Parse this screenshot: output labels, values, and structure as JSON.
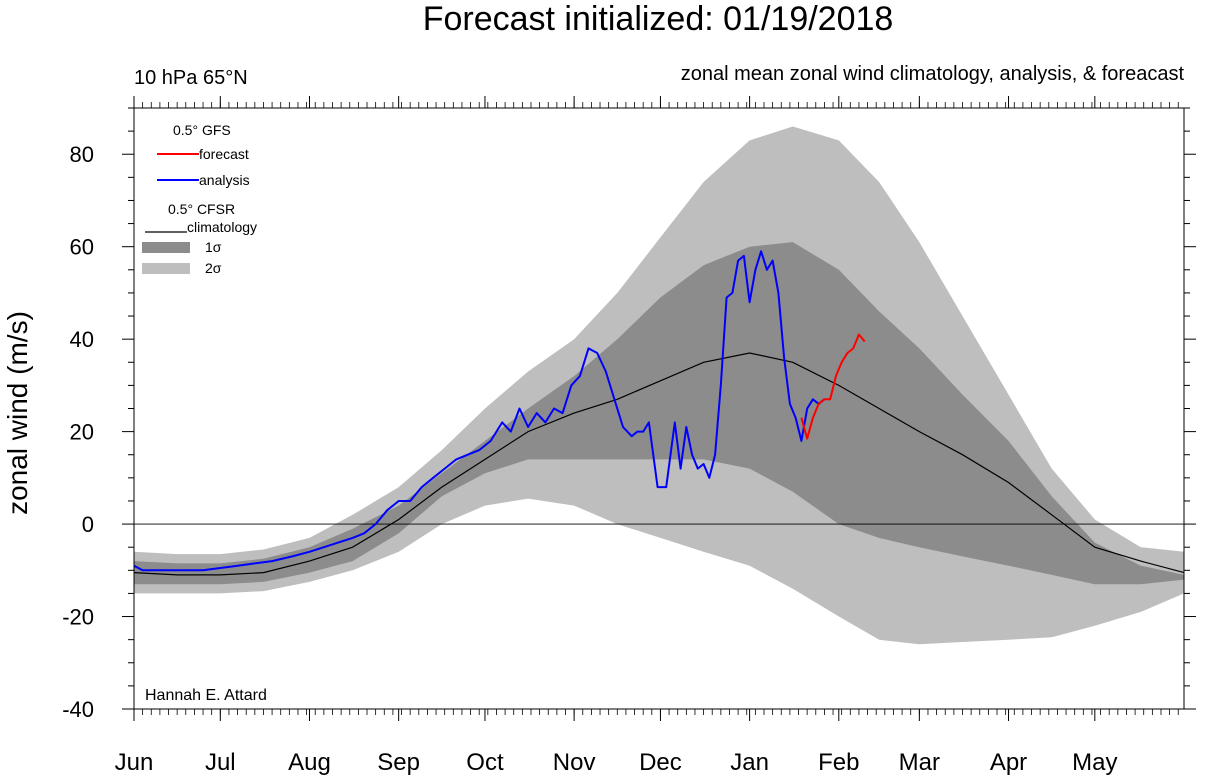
{
  "chart_data": {
    "type": "line",
    "title": "Forecast initialized: 01/19/2018",
    "subtitle_left": "10 hPa 65°N",
    "subtitle_right": "zonal mean zonal wind climatology, analysis, & foreacast",
    "ylabel": "zonal wind (m/s)",
    "xlabel": "",
    "ylim": [
      -40,
      90
    ],
    "yticks": [
      80,
      60,
      40,
      20,
      0,
      -20,
      -40
    ],
    "ytick_labels": [
      "80",
      "60",
      "40",
      "20",
      "0",
      "-20",
      "-40"
    ],
    "month_labels": [
      "Jun",
      "Jul",
      "Aug",
      "Sep",
      "Oct",
      "Nov",
      "Dec",
      "Jan",
      "Feb",
      "Mar",
      "Apr",
      "May"
    ],
    "month_positions_day": [
      0,
      30,
      61,
      92,
      122,
      153,
      183,
      214,
      245,
      273,
      304,
      334
    ],
    "xlim_day": [
      0,
      365
    ],
    "zero_line": true,
    "grid": false,
    "legend_placement": "top-left",
    "credit": "Hannah E. Attard",
    "legend": {
      "gfs_header": "0.5° GFS",
      "forecast_label": "forecast",
      "analysis_label": "analysis",
      "cfsr_header": "0.5° CFSR",
      "climatology_label": "climatology",
      "sigma1_label": "1σ",
      "sigma2_label": "2σ"
    },
    "colors": {
      "forecast": "#ff0000",
      "analysis": "#0000ff",
      "climatology": "#000000",
      "sigma1_band": "#8c8c8c",
      "sigma2_band": "#bebebe"
    },
    "climatology": {
      "x": [
        0,
        15,
        30,
        45,
        61,
        76,
        92,
        107,
        122,
        137,
        153,
        168,
        183,
        198,
        214,
        229,
        245,
        259,
        273,
        288,
        304,
        319,
        334,
        350,
        365
      ],
      "y": [
        -10.5,
        -11,
        -11,
        -10.5,
        -8,
        -5,
        1,
        8,
        14,
        20,
        24,
        27,
        31,
        35,
        37,
        35,
        30,
        25,
        20,
        15,
        9,
        2,
        -5,
        -8,
        -10.5
      ]
    },
    "sigma1_upper": {
      "x": [
        0,
        15,
        30,
        45,
        61,
        76,
        92,
        107,
        122,
        137,
        153,
        168,
        183,
        198,
        214,
        229,
        245,
        259,
        273,
        288,
        304,
        319,
        334,
        350,
        365
      ],
      "y": [
        -8,
        -8.5,
        -8.5,
        -7.5,
        -5,
        -1,
        4,
        11,
        18,
        25,
        32,
        40,
        49,
        56,
        60,
        61,
        55,
        46,
        38,
        28,
        18,
        6,
        -4,
        -9,
        -11
      ]
    },
    "sigma1_lower": {
      "x": [
        0,
        15,
        30,
        45,
        61,
        76,
        92,
        107,
        122,
        137,
        153,
        168,
        183,
        198,
        214,
        229,
        245,
        259,
        273,
        288,
        304,
        319,
        334,
        350,
        365
      ],
      "y": [
        -13,
        -13,
        -13,
        -12.5,
        -10.5,
        -8,
        -2,
        6,
        11,
        14,
        14,
        14,
        14,
        14,
        12,
        7,
        0,
        -3,
        -5,
        -7,
        -9,
        -11,
        -13,
        -13,
        -12
      ]
    },
    "sigma2_upper": {
      "x": [
        0,
        15,
        30,
        45,
        61,
        76,
        92,
        107,
        122,
        137,
        153,
        168,
        183,
        198,
        214,
        229,
        245,
        259,
        273,
        288,
        304,
        319,
        334,
        350,
        365
      ],
      "y": [
        -6,
        -6.5,
        -6.5,
        -5.5,
        -3,
        2,
        8,
        16,
        25,
        33,
        40,
        50,
        62,
        74,
        83,
        86,
        83,
        74,
        61,
        45,
        28,
        12,
        1,
        -5,
        -6
      ]
    },
    "sigma2_lower": {
      "x": [
        0,
        15,
        30,
        45,
        61,
        76,
        92,
        107,
        122,
        137,
        153,
        168,
        183,
        198,
        214,
        229,
        245,
        259,
        273,
        288,
        304,
        319,
        334,
        350,
        365
      ],
      "y": [
        -15,
        -15,
        -15,
        -14.5,
        -12.5,
        -10,
        -6,
        0,
        4,
        5.5,
        4,
        0,
        -3,
        -6,
        -9,
        -14,
        -20,
        -25,
        -26,
        -25.5,
        -25,
        -24.5,
        -22,
        -19,
        -15
      ]
    },
    "analysis": {
      "x": [
        0,
        3,
        7,
        12,
        18,
        24,
        30,
        36,
        42,
        48,
        55,
        61,
        66,
        71,
        76,
        80,
        84,
        88,
        92,
        96,
        100,
        104,
        108,
        112,
        116,
        120,
        124,
        128,
        131,
        134,
        137,
        140,
        143,
        146,
        149,
        152,
        155,
        158,
        161,
        164,
        167,
        170,
        173,
        175,
        177,
        179,
        182,
        185,
        188,
        190,
        192,
        194,
        196,
        198,
        200,
        202,
        204,
        206,
        208,
        210,
        212,
        214,
        216,
        218,
        220,
        222,
        224,
        226,
        228,
        230,
        232,
        234,
        236,
        238,
        240
      ],
      "y": [
        -9,
        -10,
        -10,
        -10,
        -10,
        -10,
        -9.5,
        -9,
        -8.5,
        -8,
        -7,
        -6,
        -5,
        -4,
        -3,
        -2,
        0,
        3,
        5,
        5,
        8,
        10,
        12,
        14,
        15,
        16,
        18,
        22,
        20,
        25,
        21,
        24,
        22,
        25,
        24,
        30,
        32,
        38,
        37,
        33,
        27,
        21,
        19,
        20,
        20,
        22,
        8,
        8,
        22,
        12,
        21,
        15,
        12,
        13,
        10,
        15,
        30,
        49,
        50,
        57,
        58,
        48,
        55,
        59,
        55,
        57,
        50,
        36,
        26,
        23,
        18,
        25,
        27,
        26,
        27
      ]
    },
    "forecast": {
      "x": [
        232,
        234,
        236,
        238,
        240,
        242,
        244,
        246,
        248,
        250,
        252,
        254
      ],
      "y": [
        23,
        18.5,
        23,
        26,
        27,
        27,
        32,
        35,
        37,
        38,
        41,
        39.5
      ]
    }
  }
}
